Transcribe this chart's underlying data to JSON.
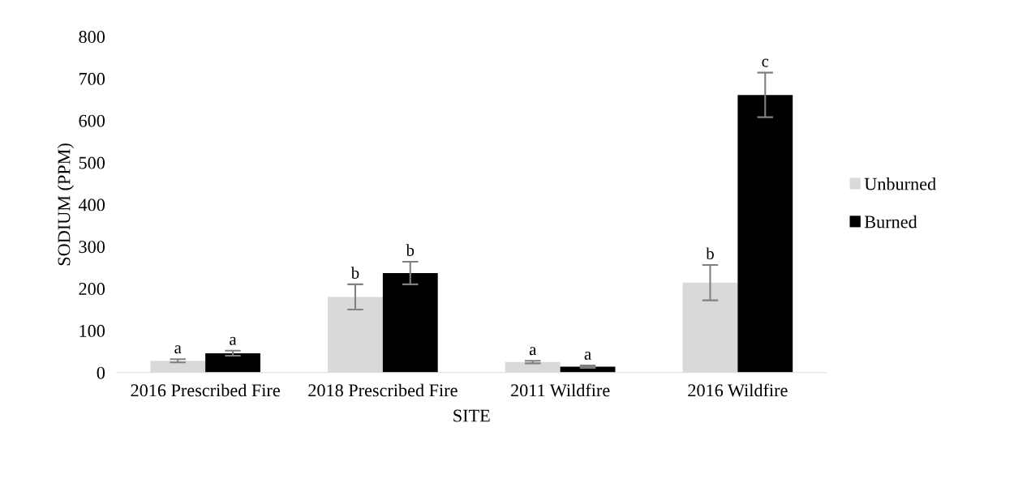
{
  "chart_data": {
    "type": "bar",
    "xlabel": "SITE",
    "ylabel": "SODIUM (PPM)",
    "categories": [
      "2016 Prescribed Fire",
      "2018 Prescribed Fire",
      "2011 Wildfire",
      "2016 Wildfire"
    ],
    "series": [
      {
        "name": "Unburned",
        "color": "#d9d9d9",
        "values": [
          28,
          180,
          25,
          214
        ],
        "errors": [
          4,
          30,
          3,
          42
        ],
        "value_labels": [
          "a",
          "b",
          "a",
          "b"
        ]
      },
      {
        "name": "Burned",
        "color": "#000000",
        "values": [
          46,
          237,
          14,
          661
        ],
        "errors": [
          6,
          27,
          3,
          53
        ],
        "value_labels": [
          "a",
          "b",
          "a",
          "c"
        ]
      }
    ],
    "ylim": [
      0,
      800
    ],
    "yticks": [
      0,
      100,
      200,
      300,
      400,
      500,
      600,
      700,
      800
    ],
    "grid": false,
    "legend": "right"
  }
}
